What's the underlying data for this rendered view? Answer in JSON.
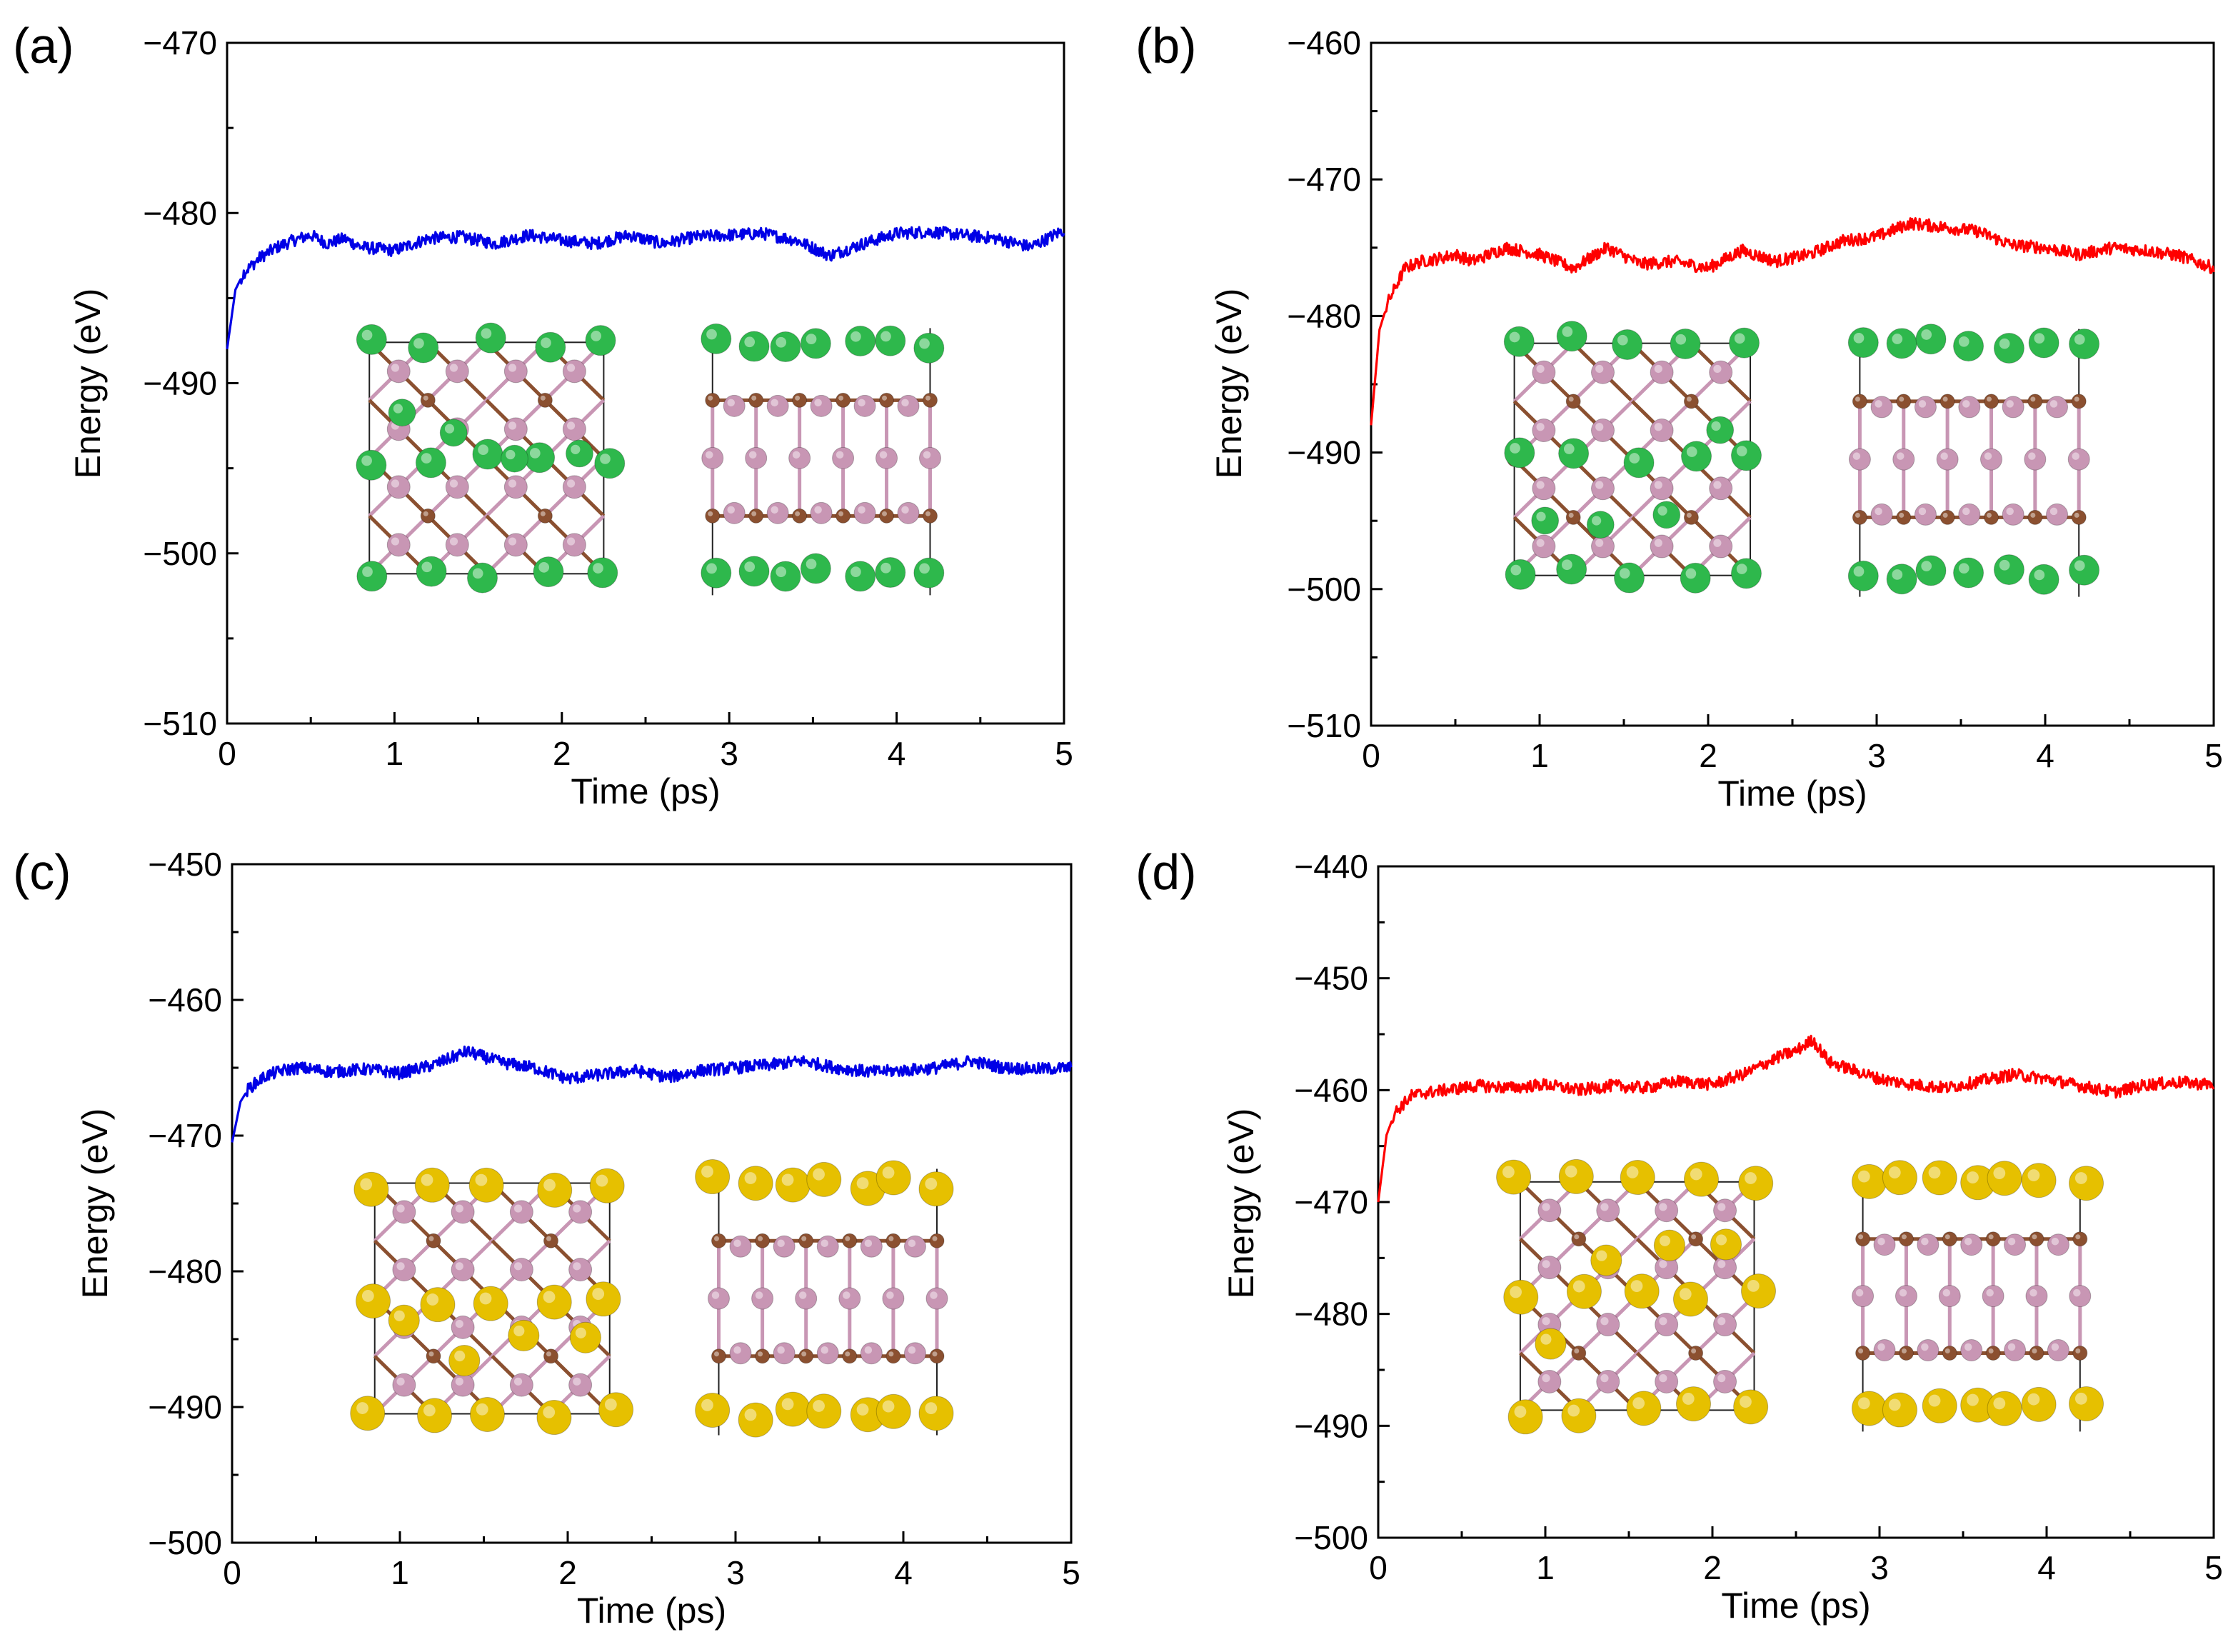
{
  "figure": {
    "description": "AIMD energy versus time for four structures",
    "colors": {
      "blue": "#0000e6",
      "red": "#ff0000",
      "green_atom": "#2eb84c",
      "yellow_atom": "#e6c000",
      "pink_atom": "#c896b4",
      "brown_atom": "#8b5030"
    }
  },
  "chart_data": [
    {
      "type": "line",
      "panel_label": "(a)",
      "xlabel": "Time (ps)",
      "ylabel": "Energy (eV)",
      "xlim": [
        0,
        5
      ],
      "ylim": [
        -510,
        -470
      ],
      "xticks": [
        "0",
        "1",
        "2",
        "3",
        "4",
        "5"
      ],
      "yticks": [
        "−510",
        "−500",
        "−490",
        "−480",
        "−470"
      ],
      "series": [
        {
          "name": "energy",
          "color": "#0000e6",
          "x": [
            0,
            0.05,
            0.1,
            0.2,
            0.3,
            0.4,
            0.5,
            0.6,
            0.7,
            0.8,
            1.0,
            1.2,
            1.4,
            1.6,
            1.8,
            2.0,
            2.2,
            2.4,
            2.6,
            2.8,
            3.0,
            3.2,
            3.4,
            3.6,
            3.8,
            4.0,
            4.2,
            4.4,
            4.6,
            4.8,
            5.0
          ],
          "y": [
            -488,
            -484.5,
            -483.5,
            -482.6,
            -482,
            -481.6,
            -481.3,
            -481.8,
            -481.5,
            -482,
            -482.2,
            -481.5,
            -481.4,
            -481.8,
            -481.3,
            -481.6,
            -481.8,
            -481.3,
            -481.8,
            -481.4,
            -481.3,
            -481.2,
            -481.6,
            -482.5,
            -481.8,
            -481.2,
            -481.1,
            -481.3,
            -481.5,
            -482,
            -481
          ]
        }
      ],
      "inset": {
        "atom": "green"
      }
    },
    {
      "type": "line",
      "panel_label": "(b)",
      "xlabel": "Time (ps)",
      "ylabel": "Energy (eV)",
      "xlim": [
        0,
        5
      ],
      "ylim": [
        -510,
        -460
      ],
      "xticks": [
        "0",
        "1",
        "2",
        "3",
        "4",
        "5"
      ],
      "yticks": [
        "−510",
        "−500",
        "−490",
        "−480",
        "−470",
        "−460"
      ],
      "series": [
        {
          "name": "energy",
          "color": "#ff0000",
          "x": [
            0,
            0.05,
            0.1,
            0.2,
            0.3,
            0.4,
            0.5,
            0.6,
            0.8,
            1.0,
            1.2,
            1.4,
            1.6,
            1.8,
            2.0,
            2.2,
            2.4,
            2.6,
            2.8,
            3.0,
            3.2,
            3.4,
            3.6,
            3.8,
            4.0,
            4.2,
            4.4,
            4.6,
            4.8,
            5.0
          ],
          "y": [
            -488,
            -481,
            -479,
            -476.5,
            -476,
            -475.8,
            -475.5,
            -476,
            -475,
            -475.5,
            -476.5,
            -475,
            -476.2,
            -476,
            -476.5,
            -475.2,
            -476,
            -475.5,
            -474.5,
            -474.2,
            -473.2,
            -473.5,
            -473.8,
            -474.8,
            -475,
            -475.5,
            -475,
            -475.2,
            -475.6,
            -476.5
          ]
        }
      ],
      "inset": {
        "atom": "green"
      }
    },
    {
      "type": "line",
      "panel_label": "(c)",
      "xlabel": "Time (ps)",
      "ylabel": "Energy (eV)",
      "xlim": [
        0,
        5
      ],
      "ylim": [
        -500,
        -450
      ],
      "xticks": [
        "0",
        "1",
        "2",
        "3",
        "4",
        "5"
      ],
      "yticks": [
        "−500",
        "−490",
        "−480",
        "−470",
        "−460",
        "−450"
      ],
      "series": [
        {
          "name": "energy",
          "color": "#0000e6",
          "x": [
            0,
            0.05,
            0.1,
            0.2,
            0.3,
            0.4,
            0.6,
            0.8,
            1.0,
            1.2,
            1.4,
            1.6,
            1.8,
            2.0,
            2.2,
            2.4,
            2.6,
            2.8,
            3.0,
            3.2,
            3.4,
            3.6,
            3.8,
            4.0,
            4.2,
            4.4,
            4.6,
            4.8,
            5.0
          ],
          "y": [
            -470.5,
            -467.5,
            -466.5,
            -465.6,
            -465.2,
            -465,
            -465.3,
            -465.1,
            -465.4,
            -464.8,
            -463.8,
            -464.6,
            -465,
            -465.8,
            -465.5,
            -465.2,
            -465.7,
            -465.2,
            -465,
            -464.8,
            -464.5,
            -465,
            -465.3,
            -465.2,
            -465,
            -464.5,
            -465,
            -465.1,
            -465
          ]
        }
      ],
      "inset": {
        "atom": "yellow"
      }
    },
    {
      "type": "line",
      "panel_label": "(d)",
      "xlabel": "Time (ps)",
      "ylabel": "Energy (eV)",
      "xlim": [
        0,
        5
      ],
      "ylim": [
        -500,
        -440
      ],
      "xticks": [
        "0",
        "1",
        "2",
        "3",
        "4",
        "5"
      ],
      "yticks": [
        "−500",
        "−490",
        "−480",
        "−470",
        "−460",
        "−450",
        "−440"
      ],
      "series": [
        {
          "name": "energy",
          "color": "#ff0000",
          "x": [
            0,
            0.05,
            0.1,
            0.2,
            0.3,
            0.4,
            0.6,
            0.8,
            1.0,
            1.2,
            1.4,
            1.6,
            1.8,
            2.0,
            2.2,
            2.4,
            2.5,
            2.6,
            2.7,
            2.8,
            3.0,
            3.2,
            3.4,
            3.6,
            3.8,
            4.0,
            4.2,
            4.4,
            4.6,
            4.8,
            5.0
          ],
          "y": [
            -470,
            -464,
            -462,
            -460.5,
            -460.2,
            -460,
            -459.6,
            -459.8,
            -459.5,
            -460,
            -459.6,
            -459.8,
            -459.2,
            -459.5,
            -458.5,
            -457,
            -456.5,
            -455.5,
            -457.5,
            -458,
            -459,
            -459.5,
            -459.8,
            -459.2,
            -458.6,
            -459,
            -459.6,
            -460.2,
            -459.5,
            -459.3,
            -459.5
          ]
        }
      ],
      "inset": {
        "atom": "yellow"
      }
    }
  ]
}
